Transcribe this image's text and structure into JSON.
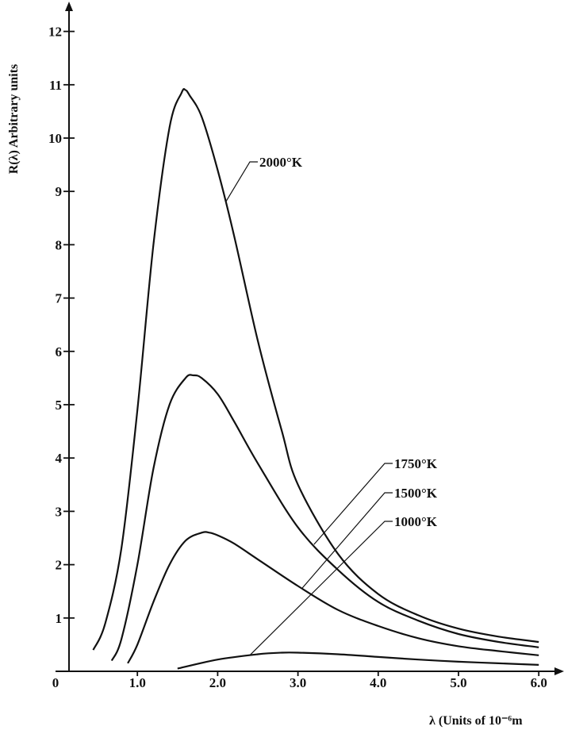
{
  "chart_data": {
    "type": "line",
    "xlabel": "λ (Units of 10⁻⁶m",
    "ylabel": "R(λ) Arbitrary units",
    "xlim": [
      0,
      6.3
    ],
    "ylim": [
      0,
      12.5
    ],
    "x_ticks": [
      "0",
      "1.0",
      "2.0",
      "3.0",
      "4.0",
      "5.0",
      "6.0"
    ],
    "y_ticks": [
      "1",
      "2",
      "3",
      "4",
      "5",
      "6",
      "7",
      "8",
      "9",
      "10",
      "11",
      "12"
    ],
    "grid": false,
    "series": [
      {
        "name": "2000°K",
        "x": [
          0.45,
          0.6,
          0.8,
          1.0,
          1.2,
          1.4,
          1.55,
          1.6,
          1.65,
          1.8,
          2.0,
          2.2,
          2.5,
          2.8,
          3.0,
          3.5,
          4.0,
          4.5,
          5.0,
          5.5,
          6.0
        ],
        "y": [
          0.4,
          0.9,
          2.3,
          4.9,
          8.0,
          10.2,
          10.85,
          10.9,
          10.8,
          10.4,
          9.4,
          8.2,
          6.2,
          4.5,
          3.5,
          2.2,
          1.45,
          1.05,
          0.8,
          0.65,
          0.55
        ]
      },
      {
        "name": "1750°K",
        "x": [
          0.68,
          0.8,
          1.0,
          1.2,
          1.4,
          1.6,
          1.7,
          1.8,
          2.0,
          2.2,
          2.5,
          3.0,
          3.5,
          4.0,
          4.5,
          5.0,
          5.5,
          6.0
        ],
        "y": [
          0.2,
          0.6,
          2.0,
          3.8,
          5.0,
          5.5,
          5.55,
          5.5,
          5.2,
          4.7,
          3.9,
          2.7,
          1.9,
          1.3,
          0.95,
          0.7,
          0.55,
          0.45
        ]
      },
      {
        "name": "1500°K",
        "x": [
          0.88,
          1.0,
          1.2,
          1.4,
          1.6,
          1.8,
          1.9,
          2.0,
          2.2,
          2.5,
          3.0,
          3.5,
          4.0,
          4.5,
          5.0,
          5.5,
          6.0
        ],
        "y": [
          0.15,
          0.5,
          1.3,
          2.0,
          2.45,
          2.6,
          2.6,
          2.55,
          2.4,
          2.1,
          1.6,
          1.15,
          0.85,
          0.62,
          0.47,
          0.38,
          0.3
        ]
      },
      {
        "name": "1000°K",
        "x": [
          1.5,
          2.0,
          2.5,
          2.8,
          3.0,
          3.5,
          4.0,
          4.5,
          5.0,
          5.5,
          6.0
        ],
        "y": [
          0.05,
          0.22,
          0.32,
          0.35,
          0.35,
          0.32,
          0.27,
          0.22,
          0.18,
          0.15,
          0.12
        ]
      }
    ]
  }
}
